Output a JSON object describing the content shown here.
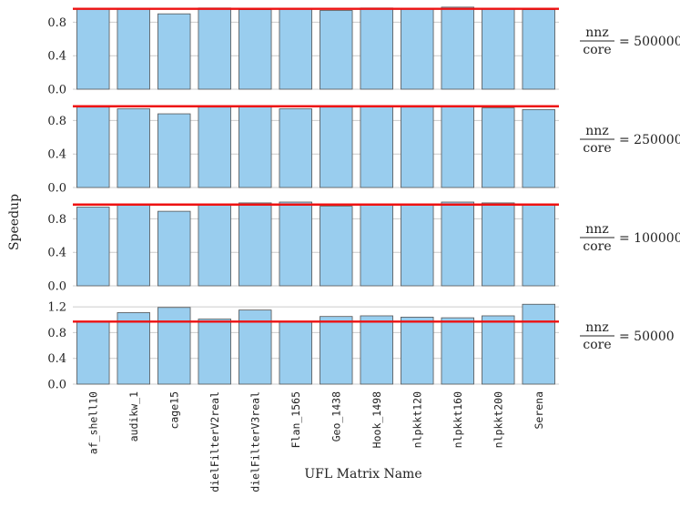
{
  "chart_data": {
    "type": "bar",
    "xlabel": "UFL Matrix Name",
    "ylabel": "Speedup",
    "categories": [
      "af_shell10",
      "audikw_1",
      "cage15",
      "dielFilterV2real",
      "dielFilterV3real",
      "Flan_1565",
      "Geo_1438",
      "Hook_1498",
      "nlpkkt120",
      "nlpkkt160",
      "nlpkkt200",
      "Serena"
    ],
    "colors": {
      "bar": "#99cdee",
      "bar_edge": "#555555",
      "reference_line": "#ee1111",
      "grid": "#cccccc"
    },
    "panels": [
      {
        "annotation_fraction_num": "nnz",
        "annotation_fraction_den": "core",
        "annotation_value": "= 500000",
        "ylim": [
          0,
          1.0
        ],
        "yticks": [
          "0.0",
          "0.4",
          "0.8"
        ],
        "ytick_values": [
          0,
          0.4,
          0.8
        ],
        "reference": 0.96,
        "values": [
          0.96,
          0.96,
          0.9,
          0.97,
          0.95,
          0.96,
          0.94,
          0.97,
          0.96,
          0.98,
          0.96,
          0.95
        ]
      },
      {
        "annotation_fraction_num": "nnz",
        "annotation_fraction_den": "core",
        "annotation_value": "= 250000",
        "ylim": [
          0,
          1.0
        ],
        "yticks": [
          "0.0",
          "0.4",
          "0.8"
        ],
        "ytick_values": [
          0,
          0.4,
          0.8
        ],
        "reference": 0.97,
        "values": [
          0.96,
          0.94,
          0.88,
          0.96,
          0.97,
          0.94,
          0.96,
          0.97,
          0.96,
          0.97,
          0.95,
          0.93
        ]
      },
      {
        "annotation_fraction_num": "nnz",
        "annotation_fraction_den": "core",
        "annotation_value": "= 100000",
        "ylim": [
          0,
          1.0
        ],
        "yticks": [
          "0.0",
          "0.4",
          "0.8"
        ],
        "ytick_values": [
          0,
          0.4,
          0.8
        ],
        "reference": 0.97,
        "values": [
          0.94,
          0.97,
          0.89,
          0.97,
          0.99,
          1.0,
          0.95,
          0.97,
          0.97,
          1.0,
          0.99,
          0.97
        ]
      },
      {
        "annotation_fraction_num": "nnz",
        "annotation_fraction_den": "core",
        "annotation_value": "= 50000",
        "ylim": [
          0,
          1.3
        ],
        "yticks": [
          "0.0",
          "0.4",
          "0.8",
          "1.2"
        ],
        "ytick_values": [
          0,
          0.4,
          0.8,
          1.2
        ],
        "reference": 0.97,
        "values": [
          0.97,
          1.11,
          1.19,
          1.01,
          1.15,
          0.97,
          1.05,
          1.06,
          1.04,
          1.03,
          1.06,
          1.24
        ]
      }
    ]
  }
}
